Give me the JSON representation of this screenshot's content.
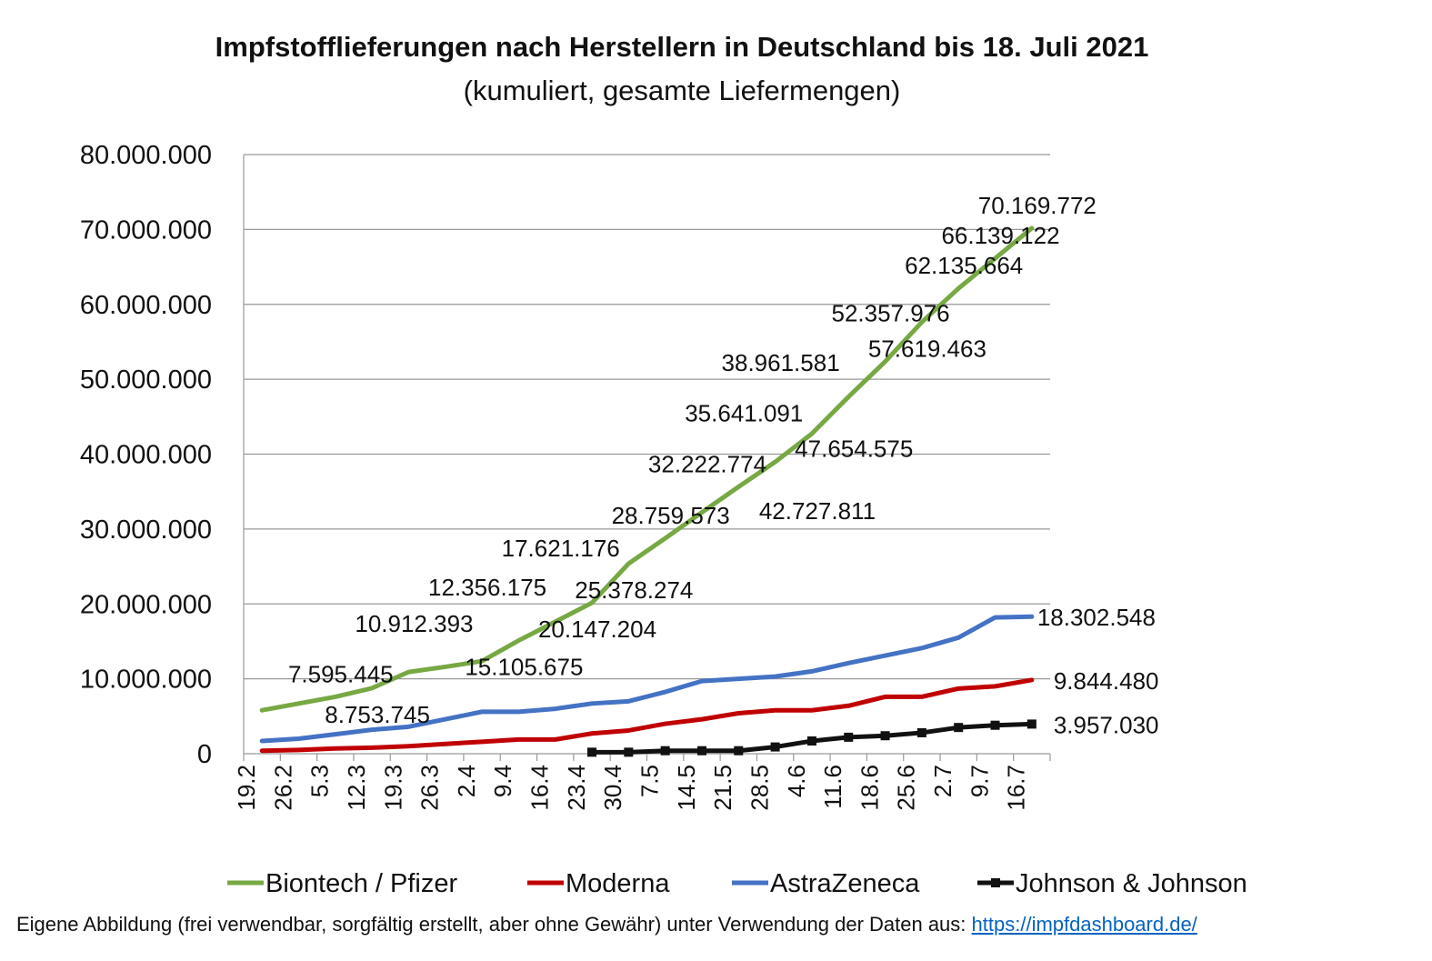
{
  "chart_data": {
    "type": "line",
    "title": "Impfstofflieferungen nach Herstellern in Deutschland bis 18. Juli 2021",
    "subtitle": "(kumuliert, gesamte Liefermengen)",
    "xlabel": "",
    "ylabel": "",
    "categories": [
      "19.2",
      "26.2",
      "5.3",
      "12.3",
      "19.3",
      "26.3",
      "2.4",
      "9.4",
      "16.4",
      "23.4",
      "30.4",
      "7.5",
      "14.5",
      "21.5",
      "28.5",
      "4.6",
      "11.6",
      "18.6",
      "25.6",
      "2.7",
      "9.7",
      "16.7"
    ],
    "ylim": [
      0,
      80000000
    ],
    "yticks": [
      0,
      10000000,
      20000000,
      30000000,
      40000000,
      50000000,
      60000000,
      70000000,
      80000000
    ],
    "ytick_labels": [
      "0",
      "10.000.000",
      "20.000.000",
      "30.000.000",
      "40.000.000",
      "50.000.000",
      "60.000.000",
      "70.000.000",
      "80.000.000"
    ],
    "grid": "horizontal",
    "legend_placement": "bottom",
    "series": [
      {
        "name": "Biontech / Pfizer",
        "color": "#77a844",
        "marker": "none",
        "values": [
          5800000,
          6700000,
          7595445,
          8753745,
          10912393,
          11600000,
          12356175,
          15105675,
          17621176,
          20147204,
          25378274,
          28759573,
          32222774,
          35641091,
          38961581,
          42727811,
          47654575,
          52357976,
          57619463,
          62135664,
          66139122,
          70169772
        ],
        "labels": [
          null,
          null,
          "7.595.445",
          "8.753.745",
          "10.912.393",
          null,
          "12.356.175",
          "15.105.675",
          "17.621.176",
          "20.147.204",
          "25.378.274",
          "28.759.573",
          "32.222.774",
          "35.641.091",
          "38.961.581",
          "42.727.811",
          "47.654.575",
          "52.357.976",
          "57.619.463",
          "62.135.664",
          "66.139.122",
          "70.169.772"
        ]
      },
      {
        "name": "Moderna",
        "color": "#c00000",
        "marker": "none",
        "values": [
          400000,
          500000,
          700000,
          800000,
          1000000,
          1300000,
          1600000,
          1900000,
          1900000,
          2700000,
          3100000,
          4000000,
          4600000,
          5400000,
          5800000,
          5800000,
          6400000,
          7600000,
          7600000,
          8700000,
          9000000,
          9844480
        ],
        "labels": [
          null,
          null,
          null,
          null,
          null,
          null,
          null,
          null,
          null,
          null,
          null,
          null,
          null,
          null,
          null,
          null,
          null,
          null,
          null,
          null,
          null,
          "9.844.480"
        ]
      },
      {
        "name": "AstraZeneca",
        "color": "#4472c4",
        "marker": "none",
        "values": [
          1700000,
          2000000,
          2600000,
          3200000,
          3600000,
          4600000,
          5600000,
          5600000,
          6000000,
          6700000,
          7000000,
          8250000,
          9700000,
          10000000,
          10300000,
          11000000,
          12100000,
          13100000,
          14100000,
          15500000,
          18200000,
          18302548
        ],
        "labels": [
          null,
          null,
          null,
          null,
          null,
          null,
          null,
          null,
          null,
          null,
          null,
          null,
          null,
          null,
          null,
          null,
          null,
          null,
          null,
          null,
          null,
          "18.302.548"
        ]
      },
      {
        "name": "Johnson & Johnson",
        "color": "#111111",
        "marker": "square",
        "values": [
          null,
          null,
          null,
          null,
          null,
          null,
          null,
          null,
          null,
          200000,
          200000,
          400000,
          400000,
          400000,
          900000,
          1700000,
          2200000,
          2400000,
          2800000,
          3500000,
          3800000,
          3957030
        ],
        "labels": [
          null,
          null,
          null,
          null,
          null,
          null,
          null,
          null,
          null,
          null,
          null,
          null,
          null,
          null,
          null,
          null,
          null,
          null,
          null,
          null,
          null,
          "3.957.030"
        ]
      }
    ]
  },
  "footer": {
    "text": "Eigene Abbildung (frei verwendbar, sorgfältig erstellt, aber ohne Gewähr) unter Verwendung der Daten aus: ",
    "link": "https://impfdashboard.de/"
  }
}
